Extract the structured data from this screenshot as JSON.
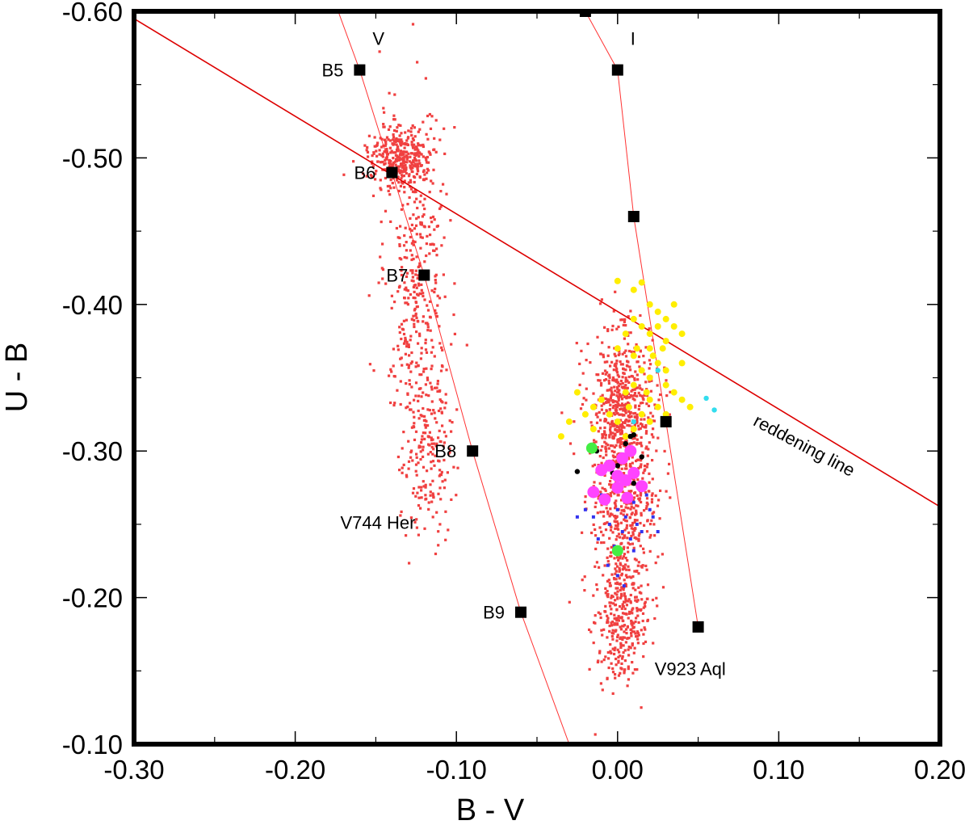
{
  "chart_data": {
    "type": "scatter",
    "title": "",
    "xlabel": "B - V",
    "ylabel": "U - B",
    "xlim": [
      -0.3,
      0.2
    ],
    "ylim": [
      -0.6,
      -0.1
    ],
    "y_axis_inverted_top": -0.6,
    "grid": false,
    "x_ticks": [
      -0.3,
      -0.2,
      -0.1,
      0.0,
      0.1,
      0.2
    ],
    "x_tick_labels": [
      "-0.30",
      "-0.20",
      "-0.10",
      "0.00",
      "0.10",
      "0.20"
    ],
    "y_ticks": [
      -0.6,
      -0.5,
      -0.4,
      -0.3,
      -0.2,
      -0.1
    ],
    "y_tick_labels": [
      "-0.60",
      "-0.50",
      "-0.40",
      "-0.30",
      "-0.20",
      "-0.10"
    ],
    "lines": [
      {
        "name": "V",
        "label": "V",
        "color": "#ff3333",
        "points": [
          [
            -0.18,
            -0.62
          ],
          [
            -0.16,
            -0.56
          ],
          [
            -0.14,
            -0.49
          ],
          [
            -0.12,
            -0.42
          ],
          [
            -0.09,
            -0.3
          ],
          [
            -0.06,
            -0.19
          ],
          [
            -0.03,
            -0.1
          ]
        ]
      },
      {
        "name": "I",
        "label": "I",
        "color": "#ff3333",
        "points": [
          [
            -0.02,
            -0.6
          ],
          [
            0.0,
            -0.56
          ],
          [
            0.01,
            -0.46
          ],
          [
            0.03,
            -0.32
          ],
          [
            0.05,
            -0.18
          ]
        ]
      },
      {
        "name": "reddening line",
        "label": "reddening line",
        "color": "#dd0000",
        "points": [
          [
            -0.3,
            -0.595
          ],
          [
            0.2,
            -0.262
          ]
        ]
      }
    ],
    "spectral_type_points": [
      {
        "label": "B5",
        "x": -0.16,
        "y": -0.56
      },
      {
        "label": "B6",
        "x": -0.14,
        "y": -0.49
      },
      {
        "label": "B7",
        "x": -0.12,
        "y": -0.42
      },
      {
        "label": "B8",
        "x": -0.09,
        "y": -0.3
      },
      {
        "label": "B9",
        "x": -0.06,
        "y": -0.19
      }
    ],
    "class_I_points": [
      {
        "x": -0.02,
        "y": -0.6
      },
      {
        "x": 0.0,
        "y": -0.56
      },
      {
        "x": 0.01,
        "y": -0.46
      },
      {
        "x": 0.03,
        "y": -0.32
      },
      {
        "x": 0.05,
        "y": -0.18
      }
    ],
    "clusters": [
      {
        "name": "V744 Her",
        "color": "#f04040",
        "n": 900,
        "segments": [
          [
            -0.135,
            -0.5,
            0.01,
            0.01,
            0.35
          ],
          [
            -0.125,
            -0.42,
            0.01,
            0.06,
            0.45
          ],
          [
            -0.118,
            -0.3,
            0.008,
            0.03,
            0.2
          ]
        ]
      },
      {
        "name": "V923 Aql",
        "color": "#f04040",
        "n": 1300,
        "segments": [
          [
            0.003,
            -0.33,
            0.01,
            0.025,
            0.45
          ],
          [
            0.004,
            -0.26,
            0.01,
            0.03,
            0.3
          ],
          [
            0.002,
            -0.185,
            0.008,
            0.022,
            0.25
          ]
        ]
      }
    ],
    "extra_series": [
      {
        "name": "yellow",
        "color": "#ffee00",
        "points": [
          [
            0.0,
            -0.416
          ],
          [
            0.01,
            -0.41
          ],
          [
            0.015,
            -0.415
          ],
          [
            0.02,
            -0.4
          ],
          [
            0.025,
            -0.395
          ],
          [
            0.03,
            -0.39
          ],
          [
            0.035,
            -0.4
          ],
          [
            0.01,
            -0.39
          ],
          [
            0.015,
            -0.385
          ],
          [
            0.02,
            -0.38
          ],
          [
            0.025,
            -0.385
          ],
          [
            0.005,
            -0.38
          ],
          [
            0.03,
            -0.375
          ],
          [
            0.035,
            -0.385
          ],
          [
            0.04,
            -0.38
          ],
          [
            0.02,
            -0.37
          ],
          [
            0.01,
            -0.365
          ],
          [
            0.0,
            -0.37
          ],
          [
            0.025,
            -0.36
          ],
          [
            0.015,
            -0.355
          ],
          [
            0.02,
            -0.35
          ],
          [
            0.03,
            -0.345
          ],
          [
            0.035,
            -0.34
          ],
          [
            0.01,
            -0.345
          ],
          [
            0.005,
            -0.34
          ],
          [
            0.02,
            -0.335
          ],
          [
            0.025,
            -0.33
          ],
          [
            0.03,
            -0.325
          ],
          [
            0.04,
            -0.335
          ],
          [
            0.045,
            -0.33
          ],
          [
            -0.01,
            -0.335
          ],
          [
            -0.015,
            -0.33
          ],
          [
            -0.02,
            -0.325
          ],
          [
            -0.025,
            -0.34
          ],
          [
            -0.03,
            -0.32
          ],
          [
            -0.035,
            -0.31
          ],
          [
            -0.015,
            -0.315
          ],
          [
            0.0,
            -0.32
          ],
          [
            0.005,
            -0.31
          ],
          [
            0.01,
            -0.315
          ],
          [
            0.015,
            -0.325
          ],
          [
            0.02,
            -0.32
          ],
          [
            0.012,
            -0.37
          ],
          [
            0.022,
            -0.365
          ],
          [
            0.018,
            -0.34
          ],
          [
            0.007,
            -0.33
          ],
          [
            -0.005,
            -0.325
          ],
          [
            0.03,
            -0.355
          ],
          [
            0.028,
            -0.37
          ],
          [
            0.04,
            -0.36
          ]
        ]
      },
      {
        "name": "cyan",
        "color": "#33ddee",
        "points": [
          [
            0.055,
            -0.336
          ],
          [
            0.06,
            -0.328
          ],
          [
            0.025,
            -0.355
          ],
          [
            0.01,
            -0.32
          ],
          [
            0.008,
            -0.31
          ]
        ]
      },
      {
        "name": "black",
        "color": "#000000",
        "points": [
          [
            -0.013,
            -0.3
          ],
          [
            -0.005,
            -0.292
          ],
          [
            0.0,
            -0.29
          ],
          [
            -0.003,
            -0.285
          ],
          [
            0.005,
            -0.305
          ],
          [
            0.01,
            -0.311
          ],
          [
            0.008,
            -0.31
          ],
          [
            0.015,
            -0.296
          ],
          [
            0.01,
            -0.278
          ],
          [
            -0.025,
            -0.286
          ]
        ]
      },
      {
        "name": "blue",
        "color": "#3333ee",
        "points": [
          [
            -0.01,
            -0.27
          ],
          [
            0.0,
            -0.26
          ],
          [
            0.005,
            -0.255
          ],
          [
            0.01,
            -0.265
          ],
          [
            -0.005,
            -0.25
          ],
          [
            0.015,
            -0.245
          ],
          [
            -0.015,
            -0.255
          ],
          [
            0.02,
            -0.26
          ],
          [
            0.008,
            -0.24
          ],
          [
            -0.002,
            -0.235
          ],
          [
            0.012,
            -0.25
          ],
          [
            -0.012,
            -0.24
          ],
          [
            0.018,
            -0.27
          ],
          [
            -0.008,
            -0.265
          ],
          [
            0.003,
            -0.245
          ],
          [
            0.006,
            -0.27
          ],
          [
            -0.02,
            -0.26
          ],
          [
            0.022,
            -0.255
          ],
          [
            0.0,
            -0.215
          ],
          [
            0.004,
            -0.208
          ],
          [
            -0.025,
            -0.255
          ],
          [
            0.025,
            -0.245
          ],
          [
            0.01,
            -0.232
          ],
          [
            -0.006,
            -0.222
          ]
        ]
      },
      {
        "name": "magenta",
        "color": "#ff44ff",
        "points": [
          [
            -0.015,
            -0.272
          ],
          [
            -0.008,
            -0.267
          ],
          [
            0.0,
            -0.275
          ],
          [
            0.005,
            -0.28
          ],
          [
            0.01,
            -0.285
          ],
          [
            -0.005,
            -0.29
          ],
          [
            0.003,
            -0.295
          ],
          [
            -0.01,
            -0.287
          ],
          [
            0.008,
            -0.3
          ],
          [
            0.015,
            -0.276
          ],
          [
            0.0,
            -0.283
          ],
          [
            0.006,
            -0.268
          ]
        ]
      },
      {
        "name": "green",
        "color": "#44ee44",
        "points": [
          [
            -0.016,
            -0.302
          ],
          [
            0.0,
            -0.232
          ]
        ]
      }
    ],
    "annotations": [
      {
        "text": "V",
        "x": -0.152,
        "y": -0.577,
        "rotate": 0
      },
      {
        "text": "I",
        "x": 0.008,
        "y": -0.577,
        "rotate": 0
      },
      {
        "text": "V744 Her",
        "x": -0.172,
        "y": -0.247,
        "rotate": 0
      },
      {
        "text": "V923 Aql",
        "x": 0.023,
        "y": -0.147,
        "rotate": 0
      },
      {
        "text": "reddening line",
        "x": 0.0835,
        "y": -0.318,
        "rotate": 28
      }
    ]
  }
}
